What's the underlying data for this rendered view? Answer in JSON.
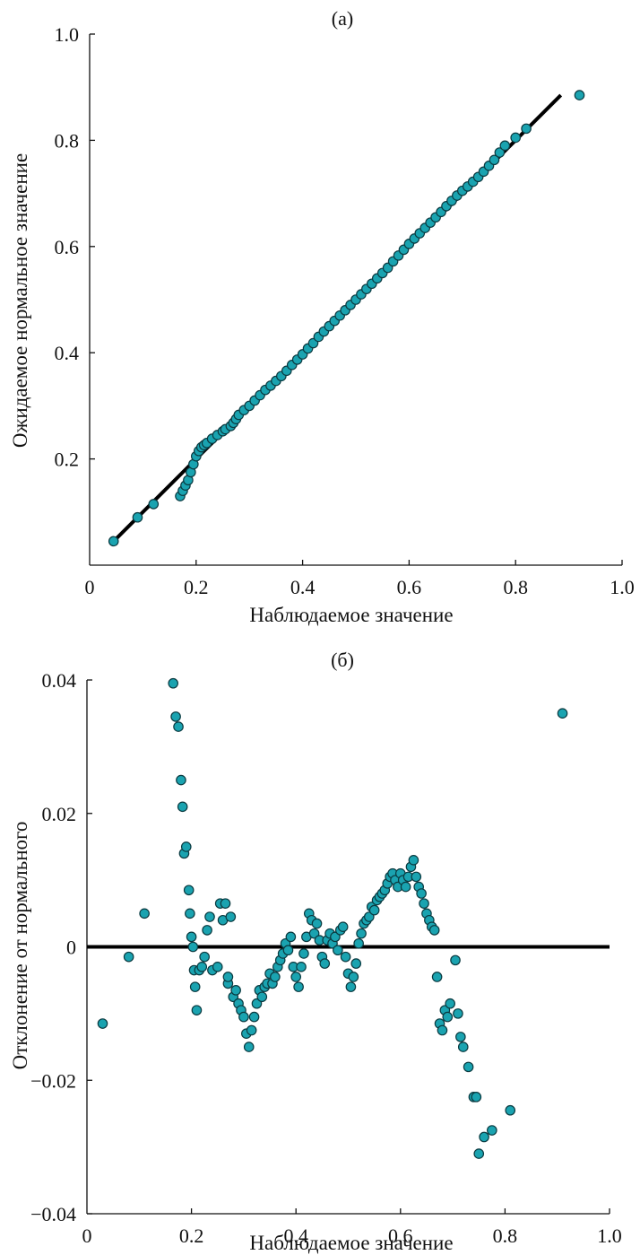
{
  "chart_data": [
    {
      "type": "scatter",
      "title": "(a)",
      "xlabel": "Наблюдаемое значение",
      "ylabel": "Ожидаемое нормальное значение",
      "xlim": [
        0,
        1.0
      ],
      "ylim": [
        0,
        1.0
      ],
      "xticks": [
        0,
        0.2,
        0.4,
        0.6,
        0.8,
        1.0
      ],
      "xtick_labels": [
        "0",
        "0.2",
        "0.4",
        "0.6",
        "0.8",
        "1.0"
      ],
      "yticks": [
        0.2,
        0.4,
        0.6,
        0.8,
        1.0
      ],
      "ytick_labels": [
        "0.2",
        "0.4",
        "0.6",
        "0.8",
        "1.0"
      ],
      "grid": false,
      "reference_line": {
        "x": [
          0.05,
          0.885
        ],
        "y": [
          0.05,
          0.885
        ]
      },
      "points": {
        "x": [
          0.045,
          0.09,
          0.12,
          0.17,
          0.175,
          0.18,
          0.185,
          0.19,
          0.195,
          0.2,
          0.205,
          0.21,
          0.215,
          0.22,
          0.23,
          0.24,
          0.25,
          0.255,
          0.265,
          0.27,
          0.275,
          0.28,
          0.29,
          0.3,
          0.31,
          0.32,
          0.33,
          0.34,
          0.35,
          0.36,
          0.37,
          0.38,
          0.39,
          0.4,
          0.41,
          0.42,
          0.43,
          0.44,
          0.45,
          0.46,
          0.47,
          0.48,
          0.49,
          0.5,
          0.51,
          0.52,
          0.53,
          0.54,
          0.55,
          0.56,
          0.57,
          0.58,
          0.59,
          0.6,
          0.61,
          0.62,
          0.63,
          0.64,
          0.65,
          0.66,
          0.67,
          0.68,
          0.69,
          0.7,
          0.71,
          0.72,
          0.73,
          0.74,
          0.75,
          0.76,
          0.77,
          0.78,
          0.8,
          0.82,
          0.92
        ],
        "y": [
          0.045,
          0.09,
          0.115,
          0.13,
          0.14,
          0.15,
          0.16,
          0.175,
          0.19,
          0.205,
          0.215,
          0.222,
          0.226,
          0.23,
          0.238,
          0.245,
          0.252,
          0.256,
          0.262,
          0.268,
          0.275,
          0.283,
          0.292,
          0.3,
          0.31,
          0.32,
          0.33,
          0.338,
          0.347,
          0.356,
          0.366,
          0.377,
          0.387,
          0.397,
          0.408,
          0.418,
          0.43,
          0.44,
          0.45,
          0.46,
          0.47,
          0.48,
          0.49,
          0.5,
          0.51,
          0.52,
          0.53,
          0.54,
          0.55,
          0.56,
          0.572,
          0.583,
          0.594,
          0.605,
          0.615,
          0.625,
          0.635,
          0.645,
          0.655,
          0.665,
          0.676,
          0.686,
          0.696,
          0.705,
          0.713,
          0.722,
          0.731,
          0.741,
          0.752,
          0.763,
          0.777,
          0.79,
          0.805,
          0.822,
          0.885
        ]
      }
    },
    {
      "type": "scatter",
      "title": "(б)",
      "xlabel": "Наблюдаемое значение",
      "ylabel": "Отклонение от нормального",
      "xlim": [
        0,
        1.0
      ],
      "ylim": [
        -0.04,
        0.04
      ],
      "xticks": [
        0,
        0.2,
        0.4,
        0.6,
        0.8,
        1.0
      ],
      "xtick_labels": [
        "0",
        "0.2",
        "0.4",
        "0.6",
        "0.8",
        "1.0"
      ],
      "yticks": [
        -0.04,
        -0.02,
        0,
        0.02,
        0.04
      ],
      "ytick_labels": [
        "−0.04",
        "−0.02",
        "0",
        "0.02",
        "0.04"
      ],
      "grid": false,
      "reference_line": {
        "x": [
          0,
          1.0
        ],
        "y": [
          0,
          0
        ]
      },
      "points": {
        "x": [
          0.03,
          0.08,
          0.11,
          0.165,
          0.17,
          0.175,
          0.18,
          0.183,
          0.186,
          0.19,
          0.195,
          0.197,
          0.2,
          0.203,
          0.205,
          0.207,
          0.21,
          0.215,
          0.22,
          0.225,
          0.23,
          0.235,
          0.24,
          0.25,
          0.255,
          0.26,
          0.265,
          0.27,
          0.27,
          0.275,
          0.28,
          0.285,
          0.29,
          0.295,
          0.3,
          0.305,
          0.31,
          0.315,
          0.32,
          0.325,
          0.33,
          0.335,
          0.34,
          0.345,
          0.35,
          0.355,
          0.36,
          0.365,
          0.37,
          0.375,
          0.38,
          0.385,
          0.39,
          0.395,
          0.4,
          0.405,
          0.41,
          0.415,
          0.42,
          0.425,
          0.43,
          0.435,
          0.44,
          0.445,
          0.45,
          0.455,
          0.46,
          0.465,
          0.47,
          0.475,
          0.48,
          0.485,
          0.49,
          0.495,
          0.5,
          0.505,
          0.51,
          0.515,
          0.52,
          0.525,
          0.53,
          0.535,
          0.54,
          0.545,
          0.55,
          0.555,
          0.56,
          0.565,
          0.57,
          0.575,
          0.58,
          0.585,
          0.59,
          0.595,
          0.6,
          0.605,
          0.61,
          0.615,
          0.62,
          0.625,
          0.63,
          0.635,
          0.64,
          0.645,
          0.65,
          0.655,
          0.66,
          0.665,
          0.67,
          0.675,
          0.68,
          0.685,
          0.69,
          0.695,
          0.705,
          0.71,
          0.715,
          0.72,
          0.73,
          0.74,
          0.745,
          0.75,
          0.76,
          0.775,
          0.81,
          0.91
        ],
        "y": [
          -0.0115,
          -0.0015,
          0.005,
          0.0395,
          0.0345,
          0.033,
          0.025,
          0.021,
          0.014,
          0.015,
          0.0085,
          0.005,
          0.0015,
          0.0,
          -0.0035,
          -0.006,
          -0.0095,
          -0.0035,
          -0.003,
          -0.0015,
          0.0025,
          0.0045,
          -0.0035,
          -0.003,
          0.0065,
          0.004,
          0.0065,
          -0.0055,
          -0.0045,
          0.0045,
          -0.0075,
          -0.0065,
          -0.0085,
          -0.0095,
          -0.0105,
          -0.013,
          -0.015,
          -0.0125,
          -0.0105,
          -0.0085,
          -0.0065,
          -0.0075,
          -0.006,
          -0.0055,
          -0.004,
          -0.0055,
          -0.0045,
          -0.003,
          -0.002,
          -0.001,
          0.0005,
          -0.0005,
          0.0015,
          -0.003,
          -0.0045,
          -0.006,
          -0.003,
          -0.001,
          0.0015,
          0.005,
          0.004,
          0.002,
          0.0035,
          0.001,
          -0.0015,
          -0.0025,
          0.001,
          0.002,
          0.0005,
          0.0015,
          -0.0005,
          0.0025,
          0.003,
          -0.0015,
          -0.004,
          -0.006,
          -0.0045,
          -0.0025,
          0.0005,
          0.002,
          0.0035,
          0.004,
          0.0045,
          0.006,
          0.0055,
          0.007,
          0.0075,
          0.008,
          0.0085,
          0.0095,
          0.0105,
          0.011,
          0.01,
          0.009,
          0.011,
          0.01,
          0.009,
          0.0105,
          0.012,
          0.013,
          0.0105,
          0.009,
          0.008,
          0.0065,
          0.005,
          0.004,
          0.003,
          0.0025,
          -0.0045,
          -0.0115,
          -0.0125,
          -0.0095,
          -0.0105,
          -0.0085,
          -0.002,
          -0.01,
          -0.0135,
          -0.015,
          -0.018,
          -0.0225,
          -0.0225,
          -0.031,
          -0.0285,
          -0.0275,
          -0.0245,
          0.035
        ]
      }
    }
  ]
}
